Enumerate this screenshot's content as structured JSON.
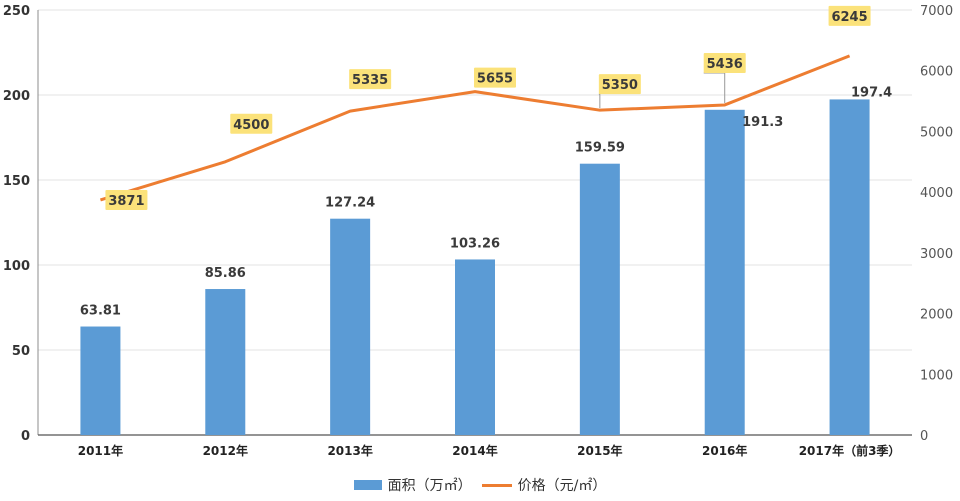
{
  "chart_data": {
    "type": "bar+line",
    "title": "",
    "categories": [
      "2011年",
      "2012年",
      "2013年",
      "2014年",
      "2015年",
      "2016年",
      "2017年（前3季）"
    ],
    "series": [
      {
        "name": "面积（万㎡）",
        "type": "bar",
        "axis": "left",
        "color": "#5b9bd5",
        "values": [
          63.81,
          85.86,
          127.24,
          103.26,
          159.59,
          191.3,
          197.4
        ],
        "labels": [
          "63.81",
          "85.86",
          "127.24",
          "103.26",
          "159.59",
          "191.3",
          "197.4"
        ]
      },
      {
        "name": "价格（元/㎡）",
        "type": "line",
        "axis": "right",
        "color": "#ed7d31",
        "values": [
          3871,
          4500,
          5335,
          5655,
          5350,
          5436,
          6245
        ],
        "labels": [
          "3871",
          "4500",
          "5335",
          "5655",
          "5350",
          "5436",
          "6245"
        ]
      }
    ],
    "left_axis": {
      "ylim": [
        0,
        250
      ],
      "ticks": [
        "0",
        "50",
        "100",
        "150",
        "200",
        "250"
      ]
    },
    "right_axis": {
      "ylim": [
        0,
        7000
      ],
      "ticks": [
        "0",
        "1000",
        "2000",
        "3000",
        "4000",
        "5000",
        "6000",
        "7000"
      ]
    },
    "grid": true,
    "legend_position": "bottom",
    "label_box_color": "#fbe27a"
  },
  "legend": {
    "area_label": "面积（万㎡）",
    "price_label": "价格（元/㎡）"
  }
}
